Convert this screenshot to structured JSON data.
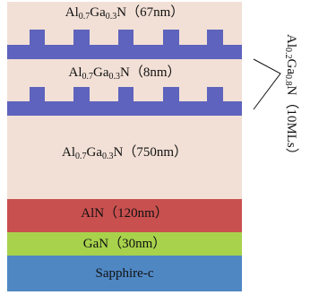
{
  "layers": {
    "top_algan": {
      "pre": "Al",
      "s1": "0.7",
      "mid": "Ga",
      "s2": "0.3",
      "post": "N（67nm）"
    },
    "mid_algan": {
      "pre": "Al",
      "s1": "0.7",
      "mid": "Ga",
      "s2": "0.3",
      "post": "N（8nm）"
    },
    "thick_algan": {
      "pre": "Al",
      "s1": "0.7",
      "mid": "Ga",
      "s2": "0.3",
      "post": "N（750nm）"
    },
    "aln": {
      "text": "AlN（120nm）"
    },
    "gan": {
      "text": "GaN（30nm）"
    },
    "sapphire": {
      "text": "Sapphire-c"
    }
  },
  "side_label": {
    "pre": "Al",
    "s1": "0.2",
    "mid": "Ga",
    "s2": "0.8",
    "post": "N（10MLs）"
  },
  "colors": {
    "algan": "#f2e0d6",
    "qw": "#5e63bd",
    "aln": "#c8504f",
    "gan": "#a8d24c",
    "sapphire": "#4f87c3",
    "background": "#ffffff"
  }
}
